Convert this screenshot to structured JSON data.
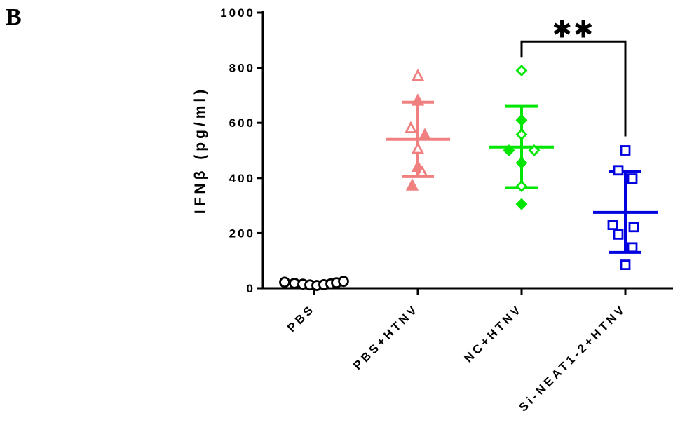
{
  "panel_label": "B",
  "chart_data": {
    "type": "scatter",
    "ylabel": "IFNβ (pg/ml)",
    "ylim": [
      0,
      1000
    ],
    "yticks": [
      0,
      200,
      400,
      600,
      800,
      1000
    ],
    "categories": [
      "PBS",
      "PBS+HTNV",
      "NC+HTNV",
      "Si-NEAT1-2+HTNV"
    ],
    "series": [
      {
        "category": "PBS",
        "color": "#000000",
        "marker": "circle-open",
        "values": [
          22,
          18,
          15,
          12,
          10,
          13,
          16,
          20,
          25
        ],
        "mean": 17,
        "sd_low": 12,
        "sd_high": 22
      },
      {
        "category": "PBS+HTNV",
        "color": "#f08080",
        "marker": "triangle-mixed",
        "values": [
          770,
          680,
          580,
          555,
          505,
          440,
          420,
          372
        ],
        "mean": 540,
        "sd_low": 405,
        "sd_high": 675
      },
      {
        "category": "NC+HTNV",
        "color": "#00e600",
        "marker": "diamond-mixed",
        "values": [
          790,
          610,
          558,
          500,
          500,
          455,
          370,
          305
        ],
        "mean": 512,
        "sd_low": 365,
        "sd_high": 660
      },
      {
        "category": "Si-NEAT1-2+HTNV",
        "color": "#0000e0",
        "marker": "square-open",
        "values": [
          500,
          428,
          398,
          230,
          222,
          195,
          148,
          85
        ],
        "mean": 275,
        "sd_low": 130,
        "sd_high": 425
      }
    ],
    "annotation": {
      "text": "✱✱",
      "from_category": "NC+HTNV",
      "to_category": "Si-NEAT1-2+HTNV",
      "level": 895
    }
  }
}
